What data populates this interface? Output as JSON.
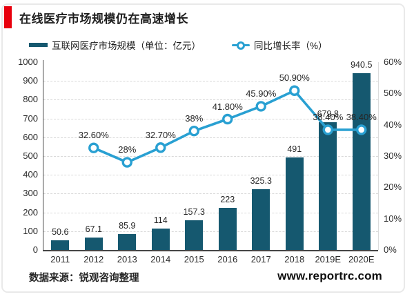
{
  "page": {
    "title": "在线医疗市场规模仍在高速增长",
    "source": "数据来源：锐观咨询整理",
    "website": "www.reportrc.com",
    "accent_color": "#e8000d",
    "border_color": "#e9e9e9"
  },
  "legend": [
    {
      "label": "互联网医疗市场规模（单位：亿元）",
      "type": "bar",
      "color": "#15586f"
    },
    {
      "label": "同比增长率（%）",
      "type": "line",
      "color": "#29a0d2"
    }
  ],
  "chart_data": {
    "type": "bar",
    "subtype": "combo-bar-line",
    "title": "在线医疗市场规模仍在高速增长",
    "categories": [
      "2011",
      "2012",
      "2013",
      "2014",
      "2015",
      "2016",
      "2017",
      "2018",
      "2019E",
      "2020E"
    ],
    "series": [
      {
        "name": "互联网医疗市场规模（单位：亿元）",
        "type": "bar",
        "axis": "left",
        "color": "#15586f",
        "values": [
          50.6,
          67.1,
          85.9,
          114,
          157.3,
          223,
          325.3,
          491,
          679.8,
          940.5
        ],
        "labels": [
          "50.6",
          "67.1",
          "85.9",
          "114",
          "157.3",
          "223",
          "325.3",
          "491",
          "679.8",
          "940.5"
        ]
      },
      {
        "name": "同比增长率（%）",
        "type": "line",
        "axis": "right",
        "color": "#29a0d2",
        "values": [
          null,
          32.6,
          28,
          32.7,
          38,
          41.8,
          45.9,
          50.9,
          38.4,
          38.4
        ],
        "labels": [
          "",
          "32.60%",
          "28%",
          "32.70%",
          "38%",
          "41.80%",
          "45.90%",
          "50.90%",
          "38.40%",
          "38.40%"
        ]
      }
    ],
    "left_axis": {
      "min": 0,
      "max": 1000,
      "step": 100,
      "ticks": [
        "0",
        "100",
        "200",
        "300",
        "400",
        "500",
        "600",
        "700",
        "800",
        "900",
        "1000"
      ]
    },
    "right_axis": {
      "min": 0,
      "max": 60,
      "step": 10,
      "ticks": [
        "0%",
        "10%",
        "20%",
        "30%",
        "40%",
        "50%",
        "60%"
      ]
    },
    "grid": true,
    "legend_position": "top",
    "xlabel": "",
    "ylabel_left": "亿元",
    "ylabel_right": "%"
  }
}
